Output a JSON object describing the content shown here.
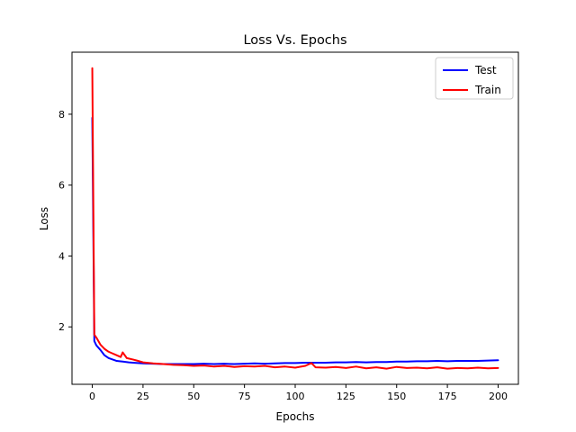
{
  "chart_data": {
    "type": "line",
    "title": "Loss Vs. Epochs",
    "xlabel": "Epochs",
    "ylabel": "Loss",
    "xlim": [
      -10,
      210
    ],
    "ylim": [
      0.38,
      9.75
    ],
    "xticks": [
      0,
      25,
      50,
      75,
      100,
      125,
      150,
      175,
      200
    ],
    "yticks": [
      2,
      4,
      6,
      8
    ],
    "grid": false,
    "legend_position": "top-right",
    "series": [
      {
        "name": "Test",
        "color": "#0000ff",
        "x": [
          0,
          1,
          2,
          4,
          6,
          8,
          10,
          12,
          15,
          18,
          20,
          25,
          30,
          35,
          40,
          45,
          50,
          55,
          60,
          65,
          70,
          75,
          80,
          85,
          90,
          95,
          100,
          105,
          110,
          115,
          120,
          125,
          130,
          135,
          140,
          145,
          150,
          155,
          160,
          165,
          170,
          175,
          180,
          185,
          190,
          195,
          200
        ],
        "y": [
          7.9,
          1.6,
          1.48,
          1.35,
          1.2,
          1.12,
          1.08,
          1.04,
          1.02,
          1.0,
          0.99,
          0.97,
          0.96,
          0.95,
          0.95,
          0.95,
          0.95,
          0.96,
          0.95,
          0.96,
          0.95,
          0.96,
          0.97,
          0.96,
          0.97,
          0.98,
          0.98,
          0.99,
          0.99,
          0.99,
          1.0,
          1.0,
          1.01,
          1.0,
          1.01,
          1.01,
          1.02,
          1.02,
          1.03,
          1.03,
          1.04,
          1.03,
          1.04,
          1.04,
          1.04,
          1.05,
          1.06
        ]
      },
      {
        "name": "Train",
        "color": "#ff0000",
        "x": [
          0,
          1,
          2,
          4,
          6,
          8,
          10,
          12,
          14,
          15,
          17,
          20,
          22,
          25,
          30,
          35,
          40,
          45,
          50,
          55,
          60,
          65,
          70,
          75,
          80,
          85,
          90,
          95,
          100,
          105,
          108,
          110,
          115,
          120,
          125,
          130,
          135,
          140,
          145,
          150,
          155,
          160,
          165,
          170,
          175,
          180,
          185,
          190,
          195,
          200
        ],
        "y": [
          9.3,
          1.78,
          1.7,
          1.5,
          1.38,
          1.3,
          1.25,
          1.2,
          1.15,
          1.28,
          1.12,
          1.08,
          1.05,
          1.0,
          0.97,
          0.95,
          0.93,
          0.92,
          0.9,
          0.91,
          0.88,
          0.9,
          0.87,
          0.89,
          0.88,
          0.9,
          0.86,
          0.88,
          0.85,
          0.9,
          0.98,
          0.86,
          0.85,
          0.87,
          0.84,
          0.88,
          0.83,
          0.86,
          0.82,
          0.87,
          0.84,
          0.85,
          0.83,
          0.86,
          0.82,
          0.84,
          0.83,
          0.85,
          0.83,
          0.84
        ]
      }
    ]
  }
}
